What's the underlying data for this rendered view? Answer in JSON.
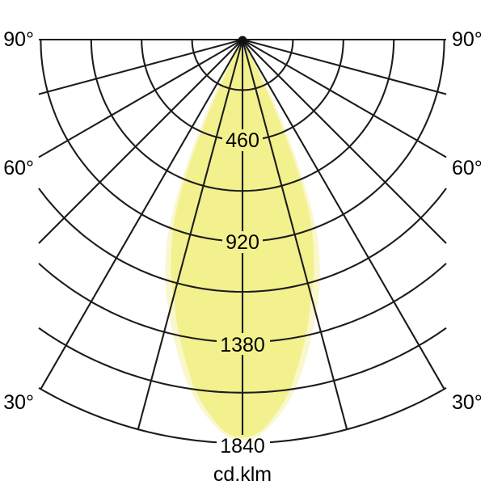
{
  "chart": {
    "angle_left": [
      "90°",
      "60°",
      "30°"
    ],
    "angle_right": [
      "90°",
      "60°",
      "30°"
    ],
    "radial_ticks": [
      "460",
      "920",
      "1380",
      "1840"
    ],
    "unit_label": "cd.klm",
    "colors": {
      "grid": "#1c1c1c",
      "background": "#ffffff",
      "beam_main": "#f3f08e",
      "beam_wide": "#faf7cd",
      "text": "#000000"
    }
  },
  "chart_data": {
    "type": "area",
    "subtype": "polar-photometric-light-distribution",
    "title": "",
    "units": "cd.klm",
    "radial_axis": {
      "ticks": [
        460,
        920,
        1380,
        1840
      ],
      "grid_step": 230,
      "max": 1840
    },
    "angular_axis": {
      "tick_labels_deg": [
        90,
        60,
        30
      ],
      "spoke_step_deg": 15,
      "range_deg": [
        -90,
        90
      ]
    },
    "symmetry": "mirrored-about-0deg",
    "peak_intensity_cd_klm": 1815,
    "series": [
      {
        "name": "wide-plane-curve",
        "color": "#faf7cd",
        "profile_deg_intensity": [
          [
            0,
            1828
          ],
          [
            2.5,
            1805
          ],
          [
            5,
            1740
          ],
          [
            7.5,
            1655
          ],
          [
            10,
            1545
          ],
          [
            12.5,
            1420
          ],
          [
            15,
            1295
          ],
          [
            17.5,
            1170
          ],
          [
            20,
            1020
          ],
          [
            21.5,
            900
          ],
          [
            23,
            740
          ],
          [
            24.5,
            560
          ],
          [
            26,
            400
          ],
          [
            27.5,
            250
          ],
          [
            28.5,
            140
          ],
          [
            29.8,
            0
          ]
        ]
      },
      {
        "name": "main-plane-curve",
        "color": "#f3f08e",
        "profile_deg_intensity": [
          [
            0,
            1815
          ],
          [
            2.5,
            1790
          ],
          [
            5,
            1715
          ],
          [
            7.5,
            1620
          ],
          [
            10,
            1490
          ],
          [
            12.5,
            1355
          ],
          [
            15,
            1215
          ],
          [
            17.5,
            1085
          ],
          [
            20,
            925
          ],
          [
            21.5,
            800
          ],
          [
            23,
            620
          ],
          [
            24,
            470
          ],
          [
            25,
            330
          ],
          [
            26,
            180
          ],
          [
            27,
            70
          ],
          [
            27.8,
            0
          ]
        ]
      }
    ]
  }
}
